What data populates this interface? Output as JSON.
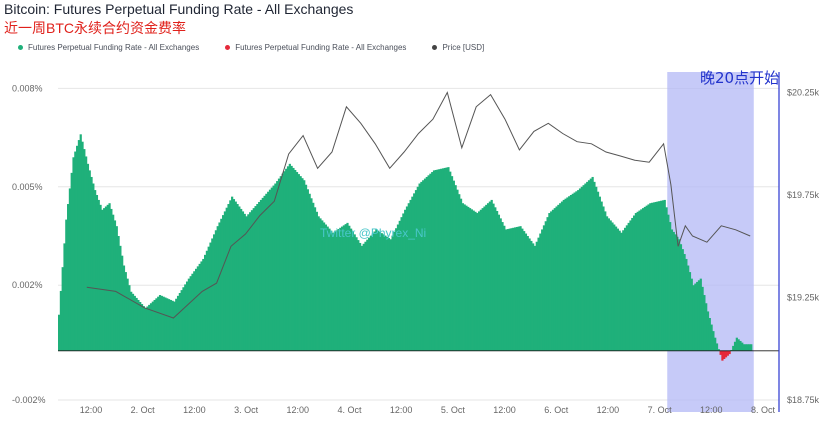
{
  "header": {
    "title": "Bitcoin: Futures Perpetual Funding Rate - All Exchanges",
    "subtitle": "近一周BTC永续合约资金费率"
  },
  "legend": [
    {
      "label": "Futures Perpetual Funding Rate - All Exchanges",
      "color": "#1fb07a"
    },
    {
      "label": "Futures Perpetual Funding Rate - All Exchanges",
      "color": "#e5293a"
    },
    {
      "label": "Price [USD]",
      "color": "#444444"
    }
  ],
  "watermark": "Twitter @Phyrex_Ni",
  "annotation": "晚20点开始",
  "chart_data": {
    "type": "bar",
    "title": "Bitcoin: Futures Perpetual Funding Rate - All Exchanges",
    "x_ticks": [
      "12:00",
      "2. Oct",
      "12:00",
      "3. Oct",
      "12:00",
      "4. Oct",
      "12:00",
      "5. Oct",
      "12:00",
      "6. Oct",
      "12:00",
      "7. Oct",
      "12:00",
      "8. Oct"
    ],
    "y_left_ticks": [
      "0.008%",
      "0.005%",
      "0.002%",
      "-0.002%"
    ],
    "y_left_values": [
      0.008,
      0.005,
      0.002,
      -0.0015
    ],
    "y_right_ticks": [
      "$20.25k",
      "$19.75k",
      "$19.25k",
      "$18.75k"
    ],
    "y_right_values": [
      20250,
      19750,
      19250,
      18750
    ],
    "x_range": [
      0,
      100
    ],
    "ylim_left": [
      -0.0015,
      0.0085
    ],
    "ylim_right": [
      18750,
      20350
    ],
    "highlight_range": [
      84.5,
      96.5
    ],
    "positive_color": "#1fb07a",
    "negative_color": "#e5293a",
    "funding_rate_series": {
      "name": "Futures Perpetual Funding Rate - All Exchanges",
      "x": [
        0,
        1,
        2,
        3,
        4,
        5,
        6,
        7,
        8,
        9,
        10,
        12,
        14,
        16,
        18,
        20,
        22,
        24,
        26,
        28,
        30,
        32,
        34,
        36,
        38,
        40,
        42,
        44,
        46,
        48,
        50,
        52,
        54,
        56,
        58,
        60,
        62,
        64,
        66,
        68,
        70,
        72,
        74,
        76,
        78,
        80,
        82,
        84,
        85,
        86,
        87,
        88,
        89,
        90,
        91,
        92,
        93,
        94,
        95,
        96
      ],
      "values": [
        0.0011,
        0.004,
        0.0059,
        0.0066,
        0.0057,
        0.0049,
        0.0043,
        0.0045,
        0.0038,
        0.0026,
        0.0018,
        0.0013,
        0.0017,
        0.0015,
        0.0022,
        0.0028,
        0.0038,
        0.0047,
        0.0041,
        0.0046,
        0.0051,
        0.0057,
        0.0052,
        0.0041,
        0.0036,
        0.0039,
        0.0032,
        0.0037,
        0.0034,
        0.0043,
        0.0051,
        0.0055,
        0.0056,
        0.0045,
        0.0042,
        0.0046,
        0.0037,
        0.0038,
        0.0032,
        0.0042,
        0.0046,
        0.0049,
        0.0053,
        0.0041,
        0.0036,
        0.0042,
        0.0045,
        0.0046,
        0.0037,
        0.0034,
        0.0028,
        0.002,
        0.0022,
        0.0012,
        0.0004,
        -0.0003,
        -0.0001,
        0.0004,
        0.0002,
        0.0002
      ]
    },
    "price_series": {
      "name": "Price [USD]",
      "x": [
        4,
        8,
        12,
        16,
        20,
        22,
        24,
        26,
        28,
        30,
        32,
        34,
        36,
        38,
        40,
        42,
        44,
        46,
        48,
        50,
        52,
        54,
        56,
        58,
        60,
        62,
        64,
        66,
        68,
        70,
        72,
        74,
        76,
        78,
        80,
        82,
        84,
        85,
        86,
        87,
        88,
        90,
        92,
        94,
        96
      ],
      "values": [
        19300,
        19280,
        19200,
        19150,
        19280,
        19320,
        19500,
        19560,
        19650,
        19720,
        19950,
        20040,
        19880,
        19960,
        20180,
        20100,
        20000,
        19880,
        19960,
        20050,
        20120,
        20250,
        19980,
        20180,
        20240,
        20120,
        19970,
        20060,
        20100,
        20050,
        20010,
        20000,
        19960,
        19940,
        19920,
        19910,
        20000,
        19800,
        19500,
        19600,
        19550,
        19520,
        19600,
        19580,
        19550
      ]
    }
  }
}
